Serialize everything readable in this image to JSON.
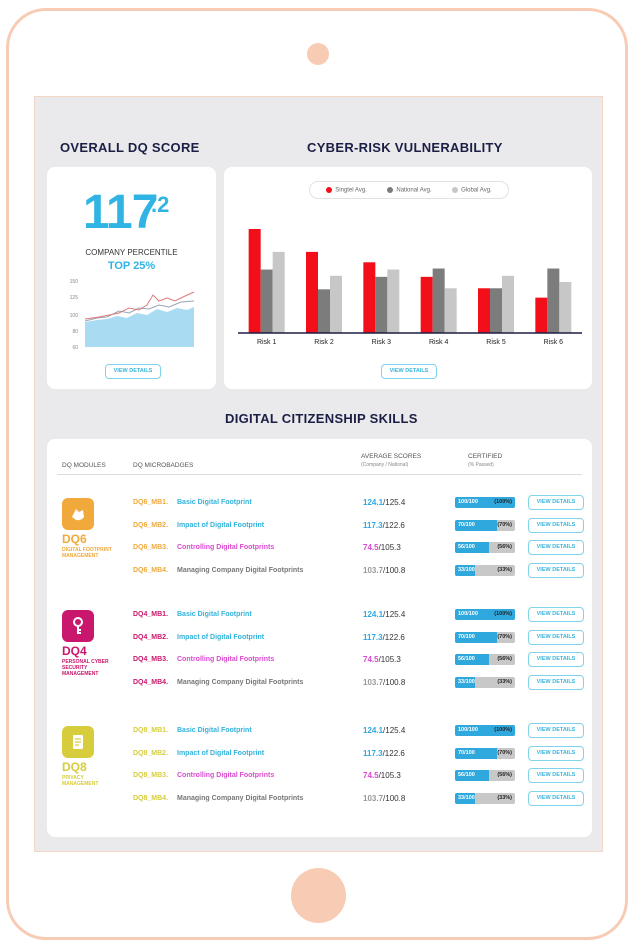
{
  "overall": {
    "title": "OVERALL DQ SCORE",
    "score_int": "117",
    "score_dec": ".2",
    "percentile_label": "COMPANY PERCENTILE",
    "percentile_value": "TOP 25%",
    "y_ticks": [
      "150",
      "125",
      "100",
      "80",
      "60"
    ],
    "view_details": "VIEW DETAILS"
  },
  "cyber": {
    "title": "CYBER-RISK VULNERABILITY",
    "view_details": "VIEW DETAILS"
  },
  "chart_data": {
    "type": "bar",
    "categories": [
      "Risk 1",
      "Risk 2",
      "Risk 3",
      "Risk 4",
      "Risk 5",
      "Risk 6"
    ],
    "series": [
      {
        "name": "Singtel Avg.",
        "color": "#f20f1a",
        "values": [
          100,
          78,
          68,
          54,
          43,
          34
        ]
      },
      {
        "name": "National Avg.",
        "color": "#7c7c7c",
        "values": [
          61,
          42,
          54,
          62,
          43,
          62
        ]
      },
      {
        "name": "Global Avg.",
        "color": "#c7c7c7",
        "values": [
          78,
          55,
          61,
          43,
          55,
          49
        ]
      }
    ],
    "ylim": [
      0,
      100
    ]
  },
  "citizenship": {
    "title": "DIGITAL CITIZENSHIP SKILLS",
    "headers": {
      "modules": "DQ MODULES",
      "microbadges": "DQ MICROBADGES",
      "avg": "AVERAGE SCORES",
      "avg_sub": "(Company / National)",
      "certified": "CERTIFIED",
      "certified_sub": "(% Passed)"
    },
    "modules": [
      {
        "code": "DQ6",
        "name": "DIGITAL FOOTPRINT MANAGEMENT",
        "color": "#f0a93a",
        "icon": "hand-icon",
        "rows": [
          {
            "code": "DQ6_MB1.",
            "name": "Basic Digital Footprint",
            "name_color": "#33b3dd",
            "score_color": "#2fa8de",
            "company": "124.1",
            "national": "/125.4",
            "fraction": "100/100",
            "pct": "(100%)",
            "level": 1.0
          },
          {
            "code": "DQ6_MB2.",
            "name": "Impact of Digital Footprint",
            "name_color": "#33b3dd",
            "score_color": "#2fa8de",
            "company": "117.3",
            "national": "/122.6",
            "fraction": "70/100",
            "pct": "(70%)",
            "level": 0.7
          },
          {
            "code": "DQ6_MB3.",
            "name": "Controlling Digital Footprints",
            "name_color": "#d94bd0",
            "score_color": "#d94bd0",
            "company": "74.5",
            "national": "/105.3",
            "fraction": "56/100",
            "pct": "(56%)",
            "level": 0.56
          },
          {
            "code": "DQ6_MB4.",
            "name": "Managing Company Digital Footprints",
            "name_color": "#777777",
            "score_color": "#999999",
            "company": "103.7",
            "national": "/100.8",
            "fraction": "33/100",
            "pct": "(33%)",
            "level": 0.33
          }
        ]
      },
      {
        "code": "DQ4",
        "name": "PERSONAL CYBER SECURITY MANAGEMENT",
        "color": "#c8176c",
        "icon": "key-icon",
        "rows": [
          {
            "code": "DQ4_MB1.",
            "name": "Basic Digital Footprint",
            "name_color": "#33b3dd",
            "score_color": "#2fa8de",
            "company": "124.1",
            "national": "/125.4",
            "fraction": "100/100",
            "pct": "(100%)",
            "level": 1.0
          },
          {
            "code": "DQ4_MB2.",
            "name": "Impact of Digital Footprint",
            "name_color": "#33b3dd",
            "score_color": "#2fa8de",
            "company": "117.3",
            "national": "/122.6",
            "fraction": "70/100",
            "pct": "(70%)",
            "level": 0.7
          },
          {
            "code": "DQ4_MB3.",
            "name": "Controlling Digital Footprints",
            "name_color": "#d94bd0",
            "score_color": "#d94bd0",
            "company": "74.5",
            "national": "/105.3",
            "fraction": "56/100",
            "pct": "(56%)",
            "level": 0.56
          },
          {
            "code": "DQ4_MB4.",
            "name": "Managing Company Digital Footprints",
            "name_color": "#777777",
            "score_color": "#999999",
            "company": "103.7",
            "national": "/100.8",
            "fraction": "33/100",
            "pct": "(33%)",
            "level": 0.33
          }
        ]
      },
      {
        "code": "DQ8",
        "name": "PRIVACY MANAGEMENT",
        "color": "#d7cd3c",
        "icon": "document-icon",
        "rows": [
          {
            "code": "DQ8_MB1.",
            "name": "Basic Digital Footprint",
            "name_color": "#33b3dd",
            "score_color": "#2fa8de",
            "company": "124.1",
            "national": "/125.4",
            "fraction": "100/100",
            "pct": "(100%)",
            "level": 1.0
          },
          {
            "code": "DQ8_MB2.",
            "name": "Impact of Digital Footprint",
            "name_color": "#33b3dd",
            "score_color": "#2fa8de",
            "company": "117.3",
            "national": "/122.6",
            "fraction": "70/100",
            "pct": "(70%)",
            "level": 0.7
          },
          {
            "code": "DQ8_MB3.",
            "name": "Controlling Digital Footprints",
            "name_color": "#d94bd0",
            "score_color": "#d94bd0",
            "company": "74.5",
            "national": "/105.3",
            "fraction": "56/100",
            "pct": "(56%)",
            "level": 0.56
          },
          {
            "code": "DQ8_MB4.",
            "name": "Managing Company Digital Footprints",
            "name_color": "#777777",
            "score_color": "#999999",
            "company": "103.7",
            "national": "/100.8",
            "fraction": "33/100",
            "pct": "(33%)",
            "level": 0.33
          }
        ]
      }
    ],
    "view_details": "VIEW DETAILS"
  }
}
